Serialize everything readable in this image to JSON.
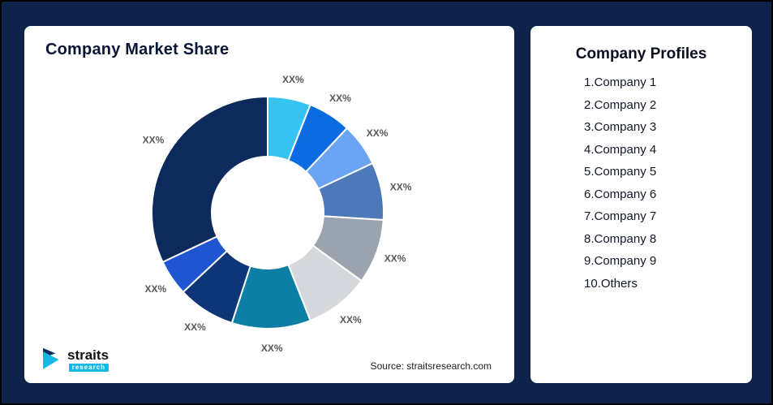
{
  "background_color": "#0d2349",
  "chart_card": {
    "title": "Company Market Share",
    "source": "Source: straitsresearch.com"
  },
  "logo": {
    "name": "straits",
    "sub": "research"
  },
  "profiles": {
    "title": "Company Profiles",
    "items": [
      "1.Company 1",
      "2.Company 2",
      "3.Company 3",
      "4.Company 4",
      "5.Company 5",
      "6.Company 6",
      "7.Company 7",
      "8.Company 8",
      "9.Company 9",
      "10.Others"
    ]
  },
  "chart_data": {
    "type": "pie",
    "subtype": "donut",
    "title": "Company Market Share",
    "labels": [
      "Company 1",
      "Company 2",
      "Company 3",
      "Company 4",
      "Company 5",
      "Company 6",
      "Company 7",
      "Company 8",
      "Company 9",
      "Others"
    ],
    "display_labels": [
      "XX%",
      "XX%",
      "XX%",
      "XX%",
      "XX%",
      "XX%",
      "XX%",
      "XX%",
      "XX%",
      "XX%"
    ],
    "values_estimated_pct": [
      6,
      6,
      6,
      8,
      9,
      9,
      11,
      8,
      5,
      32
    ],
    "colors": [
      "#36c3f2",
      "#0b6be0",
      "#6aa4f2",
      "#4e79b8",
      "#9ba3ae",
      "#d5d8dc",
      "#0e7fa4",
      "#0d3577",
      "#1f55d0",
      "#0c2a5c"
    ],
    "start_angle_deg": -90,
    "direction": "clockwise",
    "inner_radius_ratio": 0.48,
    "legend_position": "none",
    "grid": false
  }
}
